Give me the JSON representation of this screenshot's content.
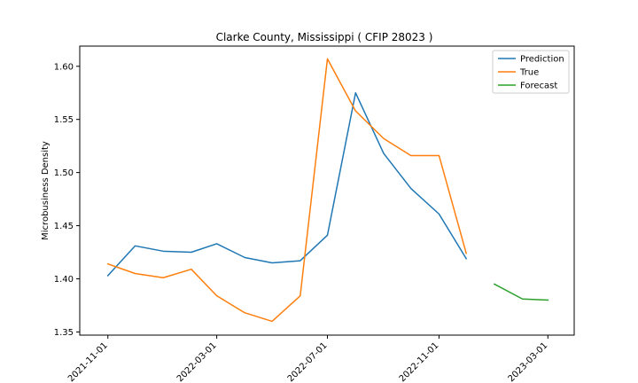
{
  "chart_data": {
    "type": "line",
    "title": "Clarke County, Mississippi ( CFIP 28023 )",
    "xlabel": "",
    "ylabel": "Microbusiness Density",
    "x_tick_labels": [
      "2021-11-01",
      "2022-03-01",
      "2022-07-01",
      "2022-11-01",
      "2023-03-01"
    ],
    "y_tick_labels": [
      "1.35",
      "1.40",
      "1.45",
      "1.50",
      "1.55",
      "1.60"
    ],
    "xlim": [
      "2021-10-01",
      "2023-03-30"
    ],
    "ylim": [
      1.347,
      1.619
    ],
    "legend": "top-right",
    "grid": false,
    "series": [
      {
        "name": "Prediction",
        "color": "#1f77b4",
        "x": [
          "2021-11-01",
          "2021-12-01",
          "2022-01-01",
          "2022-02-01",
          "2022-03-01",
          "2022-04-01",
          "2022-05-01",
          "2022-06-01",
          "2022-07-01",
          "2022-08-01",
          "2022-09-01",
          "2022-10-01",
          "2022-11-01",
          "2022-12-01"
        ],
        "values": [
          1.403,
          1.431,
          1.426,
          1.425,
          1.433,
          1.42,
          1.415,
          1.417,
          1.441,
          1.575,
          1.518,
          1.485,
          1.461,
          1.419
        ]
      },
      {
        "name": "True",
        "color": "#ff7f0e",
        "x": [
          "2021-11-01",
          "2021-12-01",
          "2022-01-01",
          "2022-02-01",
          "2022-03-01",
          "2022-04-01",
          "2022-05-01",
          "2022-06-01",
          "2022-07-01",
          "2022-08-01",
          "2022-09-01",
          "2022-10-01",
          "2022-11-01",
          "2022-12-01"
        ],
        "values": [
          1.414,
          1.405,
          1.401,
          1.409,
          1.384,
          1.368,
          1.36,
          1.384,
          1.607,
          1.558,
          1.532,
          1.516,
          1.516,
          1.424
        ]
      },
      {
        "name": "Forecast",
        "color": "#2ca02c",
        "x": [
          "2023-01-01",
          "2023-02-01",
          "2023-03-01"
        ],
        "values": [
          1.395,
          1.381,
          1.38
        ]
      }
    ]
  }
}
